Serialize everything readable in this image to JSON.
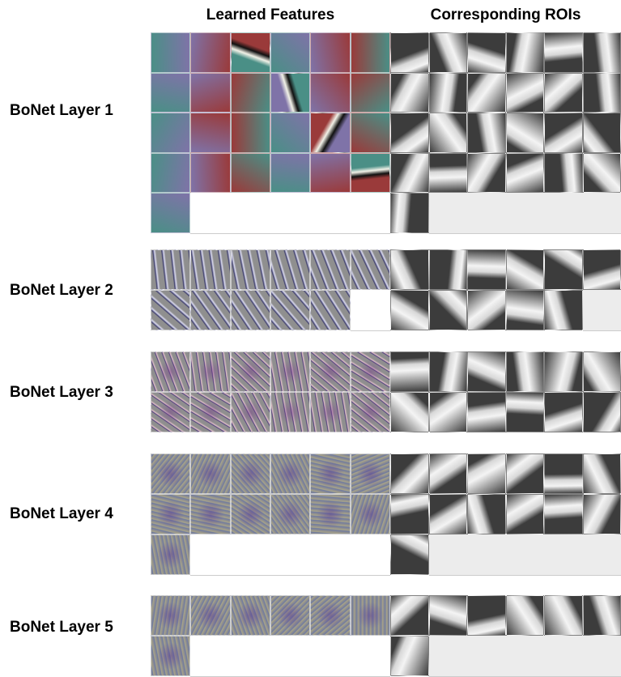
{
  "header": {
    "features_title": "Learned Features",
    "rois_title": "Corresponding ROIs"
  },
  "layers": [
    {
      "label": "BoNet Layer 1",
      "count": 25,
      "rows": 5,
      "style": "color"
    },
    {
      "label": "BoNet Layer 2",
      "count": 11,
      "rows": 2,
      "style": "edge"
    },
    {
      "label": "BoNet Layer 3",
      "count": 12,
      "rows": 2,
      "style": "stroke"
    },
    {
      "label": "BoNet Layer 4",
      "count": 13,
      "rows": 3,
      "style": "texture"
    },
    {
      "label": "BoNet Layer 5",
      "count": 7,
      "rows": 2,
      "style": "texture"
    }
  ],
  "colors": {
    "feature_gray": "#8f8f8f",
    "layer1_teal": "#4a8f86",
    "layer1_purple": "#7f73a8",
    "layer1_red": "#9a3a3a",
    "roi_dark": "#3c3c3c",
    "roi_light": "#d8d8d8",
    "blank_gray": "#ececec"
  }
}
